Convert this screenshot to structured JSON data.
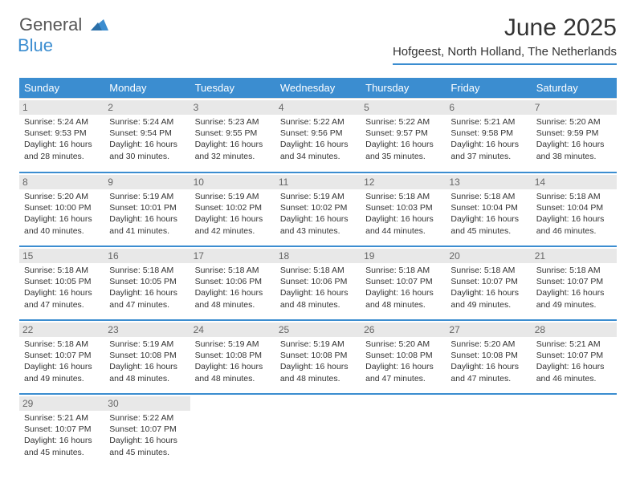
{
  "logo": {
    "main": "General",
    "sub": "Blue"
  },
  "title": "June 2025",
  "subtitle": "Hofgeest, North Holland, The Netherlands",
  "colors": {
    "brand": "#3b8dd0",
    "header_bg": "#3b8dd0",
    "header_text": "#ffffff",
    "daynum_bg": "#e8e8e8",
    "daynum_text": "#666666",
    "body_text": "#333333",
    "border": "#dcdcdc",
    "background": "#ffffff"
  },
  "day_headers": [
    "Sunday",
    "Monday",
    "Tuesday",
    "Wednesday",
    "Thursday",
    "Friday",
    "Saturday"
  ],
  "weeks": [
    [
      {
        "day": "1",
        "sunrise": "Sunrise: 5:24 AM",
        "sunset": "Sunset: 9:53 PM",
        "daylight": "Daylight: 16 hours and 28 minutes."
      },
      {
        "day": "2",
        "sunrise": "Sunrise: 5:24 AM",
        "sunset": "Sunset: 9:54 PM",
        "daylight": "Daylight: 16 hours and 30 minutes."
      },
      {
        "day": "3",
        "sunrise": "Sunrise: 5:23 AM",
        "sunset": "Sunset: 9:55 PM",
        "daylight": "Daylight: 16 hours and 32 minutes."
      },
      {
        "day": "4",
        "sunrise": "Sunrise: 5:22 AM",
        "sunset": "Sunset: 9:56 PM",
        "daylight": "Daylight: 16 hours and 34 minutes."
      },
      {
        "day": "5",
        "sunrise": "Sunrise: 5:22 AM",
        "sunset": "Sunset: 9:57 PM",
        "daylight": "Daylight: 16 hours and 35 minutes."
      },
      {
        "day": "6",
        "sunrise": "Sunrise: 5:21 AM",
        "sunset": "Sunset: 9:58 PM",
        "daylight": "Daylight: 16 hours and 37 minutes."
      },
      {
        "day": "7",
        "sunrise": "Sunrise: 5:20 AM",
        "sunset": "Sunset: 9:59 PM",
        "daylight": "Daylight: 16 hours and 38 minutes."
      }
    ],
    [
      {
        "day": "8",
        "sunrise": "Sunrise: 5:20 AM",
        "sunset": "Sunset: 10:00 PM",
        "daylight": "Daylight: 16 hours and 40 minutes."
      },
      {
        "day": "9",
        "sunrise": "Sunrise: 5:19 AM",
        "sunset": "Sunset: 10:01 PM",
        "daylight": "Daylight: 16 hours and 41 minutes."
      },
      {
        "day": "10",
        "sunrise": "Sunrise: 5:19 AM",
        "sunset": "Sunset: 10:02 PM",
        "daylight": "Daylight: 16 hours and 42 minutes."
      },
      {
        "day": "11",
        "sunrise": "Sunrise: 5:19 AM",
        "sunset": "Sunset: 10:02 PM",
        "daylight": "Daylight: 16 hours and 43 minutes."
      },
      {
        "day": "12",
        "sunrise": "Sunrise: 5:18 AM",
        "sunset": "Sunset: 10:03 PM",
        "daylight": "Daylight: 16 hours and 44 minutes."
      },
      {
        "day": "13",
        "sunrise": "Sunrise: 5:18 AM",
        "sunset": "Sunset: 10:04 PM",
        "daylight": "Daylight: 16 hours and 45 minutes."
      },
      {
        "day": "14",
        "sunrise": "Sunrise: 5:18 AM",
        "sunset": "Sunset: 10:04 PM",
        "daylight": "Daylight: 16 hours and 46 minutes."
      }
    ],
    [
      {
        "day": "15",
        "sunrise": "Sunrise: 5:18 AM",
        "sunset": "Sunset: 10:05 PM",
        "daylight": "Daylight: 16 hours and 47 minutes."
      },
      {
        "day": "16",
        "sunrise": "Sunrise: 5:18 AM",
        "sunset": "Sunset: 10:05 PM",
        "daylight": "Daylight: 16 hours and 47 minutes."
      },
      {
        "day": "17",
        "sunrise": "Sunrise: 5:18 AM",
        "sunset": "Sunset: 10:06 PM",
        "daylight": "Daylight: 16 hours and 48 minutes."
      },
      {
        "day": "18",
        "sunrise": "Sunrise: 5:18 AM",
        "sunset": "Sunset: 10:06 PM",
        "daylight": "Daylight: 16 hours and 48 minutes."
      },
      {
        "day": "19",
        "sunrise": "Sunrise: 5:18 AM",
        "sunset": "Sunset: 10:07 PM",
        "daylight": "Daylight: 16 hours and 48 minutes."
      },
      {
        "day": "20",
        "sunrise": "Sunrise: 5:18 AM",
        "sunset": "Sunset: 10:07 PM",
        "daylight": "Daylight: 16 hours and 49 minutes."
      },
      {
        "day": "21",
        "sunrise": "Sunrise: 5:18 AM",
        "sunset": "Sunset: 10:07 PM",
        "daylight": "Daylight: 16 hours and 49 minutes."
      }
    ],
    [
      {
        "day": "22",
        "sunrise": "Sunrise: 5:18 AM",
        "sunset": "Sunset: 10:07 PM",
        "daylight": "Daylight: 16 hours and 49 minutes."
      },
      {
        "day": "23",
        "sunrise": "Sunrise: 5:19 AM",
        "sunset": "Sunset: 10:08 PM",
        "daylight": "Daylight: 16 hours and 48 minutes."
      },
      {
        "day": "24",
        "sunrise": "Sunrise: 5:19 AM",
        "sunset": "Sunset: 10:08 PM",
        "daylight": "Daylight: 16 hours and 48 minutes."
      },
      {
        "day": "25",
        "sunrise": "Sunrise: 5:19 AM",
        "sunset": "Sunset: 10:08 PM",
        "daylight": "Daylight: 16 hours and 48 minutes."
      },
      {
        "day": "26",
        "sunrise": "Sunrise: 5:20 AM",
        "sunset": "Sunset: 10:08 PM",
        "daylight": "Daylight: 16 hours and 47 minutes."
      },
      {
        "day": "27",
        "sunrise": "Sunrise: 5:20 AM",
        "sunset": "Sunset: 10:08 PM",
        "daylight": "Daylight: 16 hours and 47 minutes."
      },
      {
        "day": "28",
        "sunrise": "Sunrise: 5:21 AM",
        "sunset": "Sunset: 10:07 PM",
        "daylight": "Daylight: 16 hours and 46 minutes."
      }
    ],
    [
      {
        "day": "29",
        "sunrise": "Sunrise: 5:21 AM",
        "sunset": "Sunset: 10:07 PM",
        "daylight": "Daylight: 16 hours and 45 minutes."
      },
      {
        "day": "30",
        "sunrise": "Sunrise: 5:22 AM",
        "sunset": "Sunset: 10:07 PM",
        "daylight": "Daylight: 16 hours and 45 minutes."
      },
      null,
      null,
      null,
      null,
      null
    ]
  ]
}
